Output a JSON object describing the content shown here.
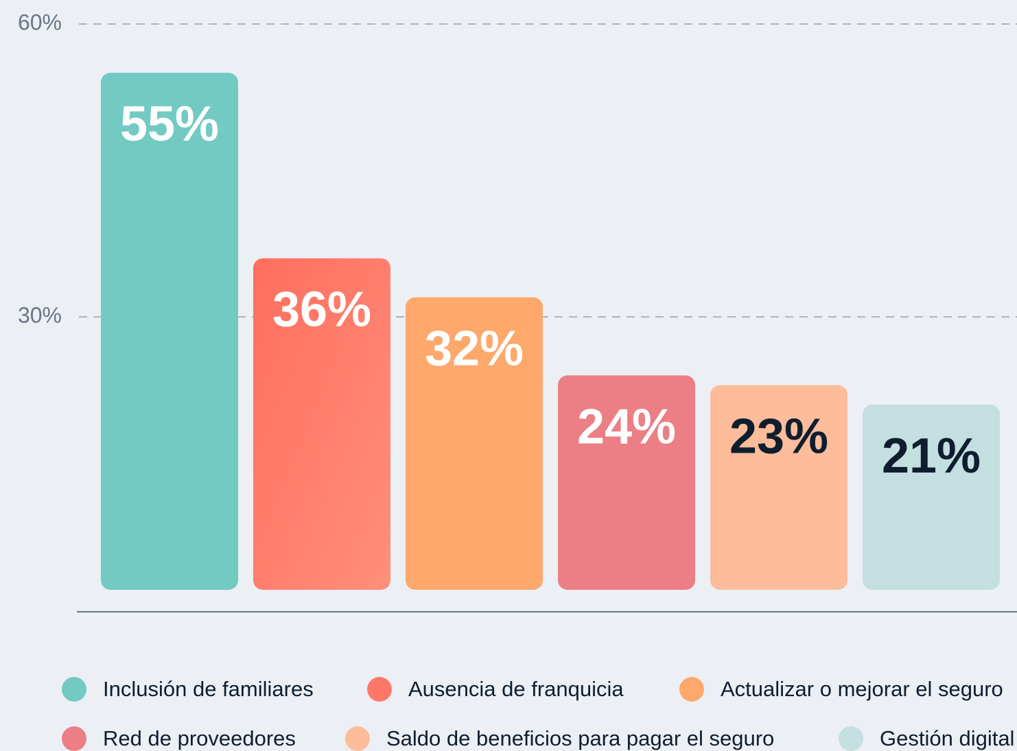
{
  "chart_data": {
    "type": "bar",
    "categories": [
      "Inclusión de familiares",
      "Ausencia de franquicia",
      "Actualizar o mejorar el seguro",
      "Red de proveedores",
      "Saldo de beneficios para pagar el seguro",
      "Gestión digital"
    ],
    "values": [
      55,
      36,
      32,
      24,
      23,
      21
    ],
    "value_labels": [
      "55%",
      "36%",
      "32%",
      "24%",
      "23%",
      "21%"
    ],
    "colors": [
      "#72cac3",
      "#ff7767",
      "#ffa86b",
      "#eb7f85",
      "#fdbc9a",
      "#c3dfdf"
    ],
    "label_colors": [
      "#ffffff",
      "#ffffff",
      "#ffffff",
      "#ffffff",
      "#0f1e2e",
      "#0f1e2e"
    ],
    "ylim": [
      0,
      60
    ],
    "yticks": [
      {
        "value": 30,
        "label": "30%"
      },
      {
        "value": 60,
        "label": "60%"
      }
    ],
    "grid": true,
    "legend": "bottom"
  }
}
